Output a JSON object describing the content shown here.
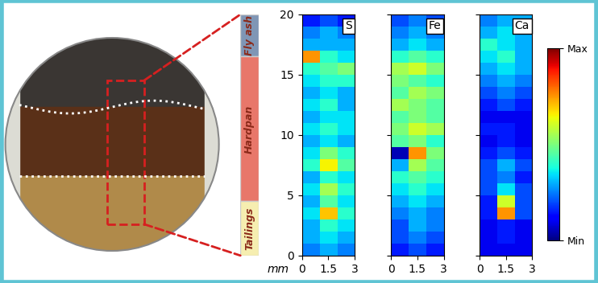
{
  "chart_data": [
    {
      "type": "heatmap",
      "title": "S",
      "xlabel": "mm",
      "xlim": [
        0,
        3
      ],
      "xticks": [
        0,
        1.5,
        3
      ],
      "ylim": [
        0,
        20
      ],
      "yticks": [
        0,
        5,
        10,
        15,
        20
      ],
      "cells": [
        [
          0.25,
          0.3,
          0.25
        ],
        [
          0.3,
          0.35,
          0.3
        ],
        [
          0.3,
          0.4,
          0.35
        ],
        [
          0.35,
          0.7,
          0.4
        ],
        [
          0.3,
          0.45,
          0.35
        ],
        [
          0.35,
          0.55,
          0.4
        ],
        [
          0.3,
          0.4,
          0.35
        ],
        [
          0.4,
          0.65,
          0.45
        ],
        [
          0.35,
          0.5,
          0.4
        ],
        [
          0.3,
          0.35,
          0.3
        ],
        [
          0.35,
          0.4,
          0.35
        ],
        [
          0.3,
          0.35,
          0.35
        ],
        [
          0.35,
          0.4,
          0.3
        ],
        [
          0.3,
          0.35,
          0.3
        ],
        [
          0.35,
          0.4,
          0.4
        ],
        [
          0.4,
          0.45,
          0.5
        ],
        [
          0.75,
          0.4,
          0.35
        ],
        [
          0.3,
          0.3,
          0.3
        ],
        [
          0.25,
          0.3,
          0.25
        ],
        [
          0.15,
          0.2,
          0.15
        ]
      ]
    },
    {
      "type": "heatmap",
      "title": "Fe",
      "tick_labels": "x",
      "xlim": [
        0,
        3
      ],
      "xticks": [
        0,
        1.5,
        3
      ],
      "ylim": [
        0,
        20
      ],
      "yticks": [
        0,
        5,
        10,
        15,
        20
      ],
      "cells": [
        [
          0.15,
          0.2,
          0.15
        ],
        [
          0.2,
          0.25,
          0.2
        ],
        [
          0.2,
          0.3,
          0.25
        ],
        [
          0.25,
          0.3,
          0.25
        ],
        [
          0.3,
          0.35,
          0.3
        ],
        [
          0.35,
          0.4,
          0.35
        ],
        [
          0.4,
          0.45,
          0.4
        ],
        [
          0.3,
          0.55,
          0.45
        ],
        [
          0.05,
          0.75,
          0.5
        ],
        [
          0.45,
          0.5,
          0.4
        ],
        [
          0.5,
          0.6,
          0.55
        ],
        [
          0.45,
          0.5,
          0.45
        ],
        [
          0.55,
          0.5,
          0.45
        ],
        [
          0.45,
          0.55,
          0.5
        ],
        [
          0.5,
          0.45,
          0.4
        ],
        [
          0.55,
          0.6,
          0.5
        ],
        [
          0.4,
          0.45,
          0.4
        ],
        [
          0.3,
          0.35,
          0.3
        ],
        [
          0.25,
          0.3,
          0.25
        ],
        [
          0.2,
          0.25,
          0.2
        ]
      ]
    },
    {
      "type": "heatmap",
      "title": "Ca",
      "tick_labels": "x",
      "xlim": [
        0,
        3
      ],
      "xticks": [
        0,
        1.5,
        3
      ],
      "ylim": [
        0,
        20
      ],
      "yticks": [
        0,
        5,
        10,
        15,
        20
      ],
      "cells": [
        [
          0.1,
          0.1,
          0.1
        ],
        [
          0.1,
          0.15,
          0.1
        ],
        [
          0.1,
          0.15,
          0.1
        ],
        [
          0.15,
          0.75,
          0.2
        ],
        [
          0.15,
          0.6,
          0.2
        ],
        [
          0.2,
          0.35,
          0.2
        ],
        [
          0.2,
          0.25,
          0.15
        ],
        [
          0.2,
          0.3,
          0.2
        ],
        [
          0.15,
          0.2,
          0.15
        ],
        [
          0.1,
          0.15,
          0.1
        ],
        [
          0.15,
          0.15,
          0.1
        ],
        [
          0.1,
          0.1,
          0.1
        ],
        [
          0.15,
          0.2,
          0.15
        ],
        [
          0.2,
          0.25,
          0.2
        ],
        [
          0.25,
          0.3,
          0.25
        ],
        [
          0.3,
          0.35,
          0.3
        ],
        [
          0.35,
          0.4,
          0.3
        ],
        [
          0.4,
          0.35,
          0.3
        ],
        [
          0.3,
          0.35,
          0.3
        ],
        [
          0.25,
          0.3,
          0.3
        ]
      ]
    }
  ],
  "colorbar": {
    "range": [
      0,
      1
    ],
    "ticks": [
      {
        "value": 1,
        "label": "Max"
      },
      {
        "value": 0,
        "label": "Min"
      }
    ]
  },
  "layers": [
    {
      "name": "Fly ash",
      "bottom": 16.5,
      "top": 20,
      "color": "#7f96b5"
    },
    {
      "name": "Hardpan",
      "bottom": 4.5,
      "top": 16.5,
      "color": "#e8776a"
    },
    {
      "name": "Tailings",
      "bottom": 0,
      "top": 4.5,
      "color": "#f6eeb0"
    }
  ]
}
